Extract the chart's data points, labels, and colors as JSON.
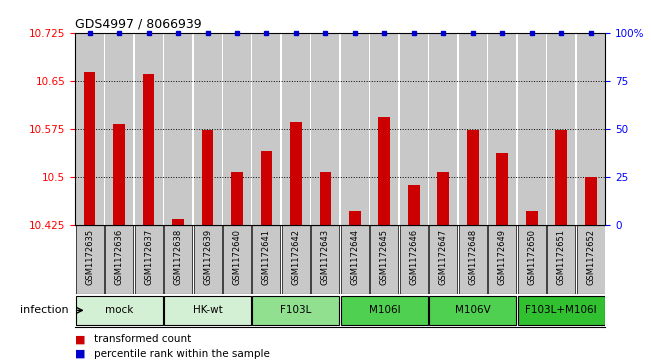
{
  "title": "GDS4997 / 8066939",
  "samples": [
    "GSM1172635",
    "GSM1172636",
    "GSM1172637",
    "GSM1172638",
    "GSM1172639",
    "GSM1172640",
    "GSM1172641",
    "GSM1172642",
    "GSM1172643",
    "GSM1172644",
    "GSM1172645",
    "GSM1172646",
    "GSM1172647",
    "GSM1172648",
    "GSM1172649",
    "GSM1172650",
    "GSM1172651",
    "GSM1172652"
  ],
  "bar_values": [
    10.663,
    10.583,
    10.661,
    10.435,
    10.574,
    10.508,
    10.54,
    10.585,
    10.508,
    10.447,
    10.593,
    10.487,
    10.508,
    10.574,
    10.538,
    10.447,
    10.574,
    10.5
  ],
  "ylim": [
    10.425,
    10.725
  ],
  "y_ticks": [
    10.425,
    10.5,
    10.575,
    10.65,
    10.725
  ],
  "right_y_ticks": [
    0,
    25,
    50,
    75,
    100
  ],
  "groups": [
    {
      "label": "mock",
      "start": 0,
      "end": 2,
      "color": "#d4f0d4"
    },
    {
      "label": "HK-wt",
      "start": 3,
      "end": 5,
      "color": "#d4f0d4"
    },
    {
      "label": "F103L",
      "start": 6,
      "end": 8,
      "color": "#90e090"
    },
    {
      "label": "M106I",
      "start": 9,
      "end": 11,
      "color": "#50d050"
    },
    {
      "label": "M106V",
      "start": 12,
      "end": 14,
      "color": "#50d050"
    },
    {
      "label": "F103L+M106I",
      "start": 15,
      "end": 17,
      "color": "#30c030"
    }
  ],
  "bar_color": "#cc0000",
  "dot_color": "#0000cc",
  "bar_bg_color": "#c8c8c8",
  "infection_label": "infection"
}
